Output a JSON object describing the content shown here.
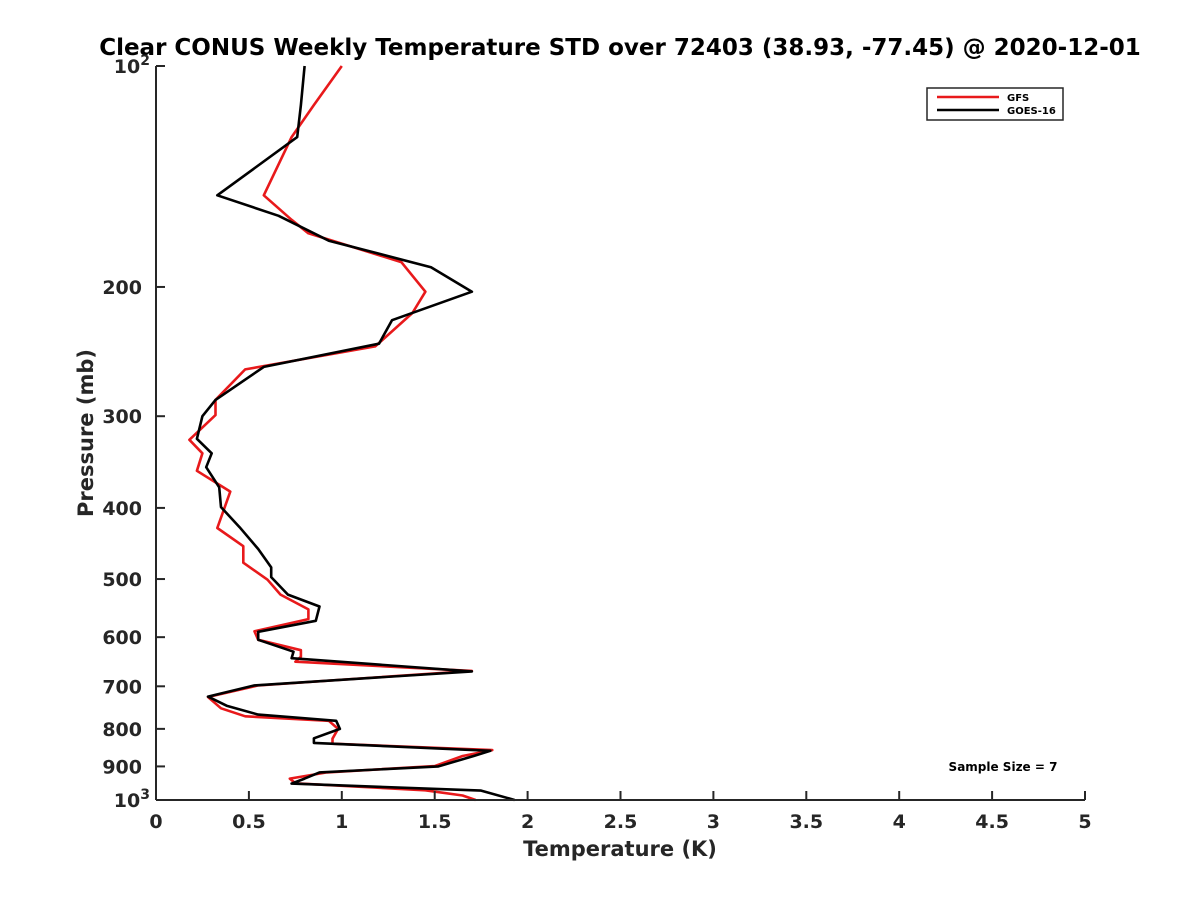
{
  "chart_data": {
    "type": "line",
    "title": "Clear CONUS Weekly Temperature STD over 72403 (38.93, -77.45) @ 2020-12-01",
    "xlabel": "Temperature (K)",
    "ylabel": "Pressure (mb)",
    "xlim": [
      0,
      5
    ],
    "ylim": [
      100,
      1000
    ],
    "y_scale": "log",
    "y_reversed": true,
    "grid": false,
    "legend_position": "top-right",
    "x_ticks": [
      {
        "value": 0,
        "label": "0"
      },
      {
        "value": 0.5,
        "label": "0.5"
      },
      {
        "value": 1,
        "label": "1"
      },
      {
        "value": 1.5,
        "label": "1.5"
      },
      {
        "value": 2,
        "label": "2"
      },
      {
        "value": 2.5,
        "label": "2.5"
      },
      {
        "value": 3,
        "label": "3"
      },
      {
        "value": 3.5,
        "label": "3.5"
      },
      {
        "value": 4,
        "label": "4"
      },
      {
        "value": 4.5,
        "label": "4.5"
      },
      {
        "value": 5,
        "label": "5"
      }
    ],
    "y_ticks": [
      {
        "value": 100,
        "label": "10",
        "exp": "2"
      },
      {
        "value": 200,
        "label": "200"
      },
      {
        "value": 300,
        "label": "300"
      },
      {
        "value": 400,
        "label": "400"
      },
      {
        "value": 500,
        "label": "500"
      },
      {
        "value": 600,
        "label": "600"
      },
      {
        "value": 700,
        "label": "700"
      },
      {
        "value": 800,
        "label": "800"
      },
      {
        "value": 900,
        "label": "900"
      },
      {
        "value": 1000,
        "label": "10",
        "exp": "3"
      }
    ],
    "series": [
      {
        "name": "GFS",
        "color": "#e8191b",
        "points": [
          [
            1.0,
            100
          ],
          [
            0.85,
            113
          ],
          [
            0.73,
            125
          ],
          [
            0.58,
            150
          ],
          [
            0.73,
            162
          ],
          [
            0.82,
            169
          ],
          [
            1.32,
            185
          ],
          [
            1.45,
            203
          ],
          [
            1.38,
            217
          ],
          [
            1.18,
            241
          ],
          [
            0.48,
            259
          ],
          [
            0.32,
            285
          ],
          [
            0.32,
            299
          ],
          [
            0.18,
            323
          ],
          [
            0.25,
            337
          ],
          [
            0.22,
            356
          ],
          [
            0.4,
            380
          ],
          [
            0.33,
            426
          ],
          [
            0.47,
            451
          ],
          [
            0.47,
            475
          ],
          [
            0.6,
            501
          ],
          [
            0.67,
            525
          ],
          [
            0.82,
            550
          ],
          [
            0.82,
            567
          ],
          [
            0.53,
            589
          ],
          [
            0.55,
            605
          ],
          [
            0.78,
            625
          ],
          [
            0.78,
            638
          ],
          [
            0.75,
            648
          ],
          [
            1.7,
            667
          ],
          [
            0.55,
            698
          ],
          [
            0.28,
            724
          ],
          [
            0.35,
            750
          ],
          [
            0.48,
            769
          ],
          [
            0.93,
            780
          ],
          [
            0.98,
            800
          ],
          [
            0.95,
            825
          ],
          [
            0.95,
            838
          ],
          [
            1.81,
            855
          ],
          [
            1.65,
            871
          ],
          [
            1.5,
            899
          ],
          [
            0.92,
            917
          ],
          [
            0.72,
            935
          ],
          [
            0.75,
            949
          ],
          [
            1.45,
            970
          ],
          [
            1.65,
            986
          ],
          [
            1.72,
            1000
          ]
        ]
      },
      {
        "name": "GOES-16",
        "color": "#000000",
        "points": [
          [
            0.8,
            100
          ],
          [
            0.78,
            113
          ],
          [
            0.76,
            125
          ],
          [
            0.33,
            150
          ],
          [
            0.66,
            160
          ],
          [
            0.93,
            173
          ],
          [
            1.48,
            188
          ],
          [
            1.7,
            203
          ],
          [
            1.27,
            222
          ],
          [
            1.2,
            239
          ],
          [
            0.58,
            257
          ],
          [
            0.32,
            285
          ],
          [
            0.25,
            300
          ],
          [
            0.22,
            322
          ],
          [
            0.3,
            337
          ],
          [
            0.27,
            352
          ],
          [
            0.34,
            375
          ],
          [
            0.35,
            399
          ],
          [
            0.45,
            425
          ],
          [
            0.55,
            455
          ],
          [
            0.62,
            482
          ],
          [
            0.62,
            497
          ],
          [
            0.71,
            525
          ],
          [
            0.88,
            545
          ],
          [
            0.86,
            570
          ],
          [
            0.55,
            590
          ],
          [
            0.55,
            605
          ],
          [
            0.74,
            628
          ],
          [
            0.73,
            641
          ],
          [
            1.7,
            668
          ],
          [
            0.53,
            698
          ],
          [
            0.28,
            723
          ],
          [
            0.38,
            744
          ],
          [
            0.55,
            765
          ],
          [
            0.97,
            780
          ],
          [
            0.99,
            800
          ],
          [
            0.85,
            824
          ],
          [
            0.85,
            836
          ],
          [
            1.8,
            857
          ],
          [
            1.71,
            871
          ],
          [
            1.52,
            900
          ],
          [
            0.88,
            917
          ],
          [
            0.8,
            935
          ],
          [
            0.73,
            950
          ],
          [
            1.75,
            971
          ],
          [
            1.93,
            1000
          ]
        ]
      }
    ],
    "annotations": [
      {
        "text": "Sample Size = 7"
      }
    ]
  }
}
